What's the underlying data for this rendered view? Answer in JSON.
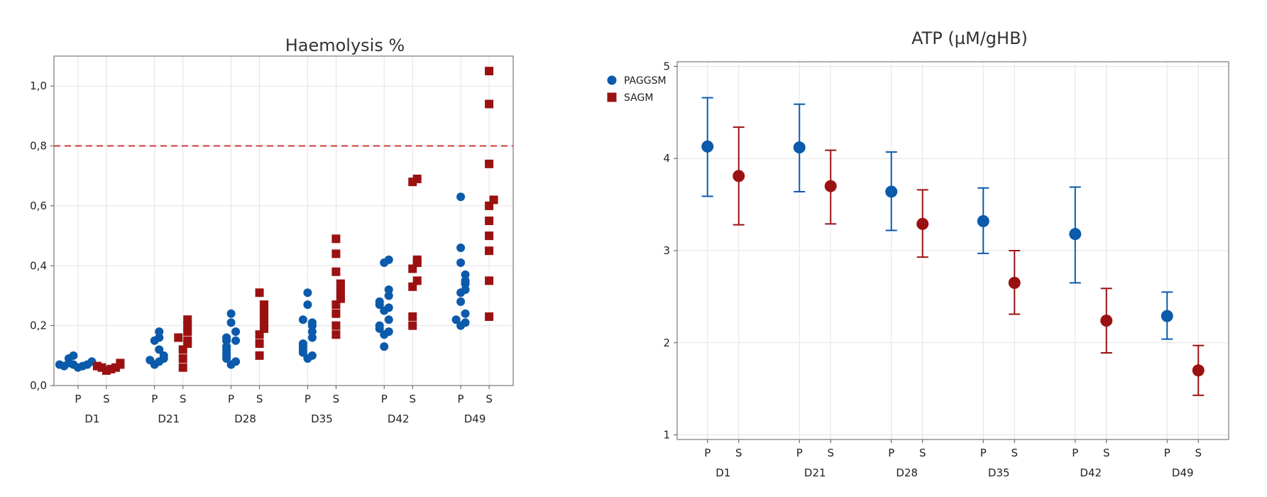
{
  "colors": {
    "PAGGSM": "#0b5aab",
    "SAGM": "#9b1111",
    "threshold": "#d03a32",
    "grid": "#e3e3e3",
    "frame": "#7a7a7a"
  },
  "legend": {
    "items": [
      {
        "label": "PAGGSM",
        "shape": "circle"
      },
      {
        "label": "SAGM",
        "shape": "square"
      }
    ]
  },
  "chart_data": [
    {
      "type": "scatter",
      "title": "Haemolysis %",
      "groups": [
        "D1",
        "D21",
        "D28",
        "D35",
        "D42",
        "D49"
      ],
      "subgroups": [
        "P",
        "S"
      ],
      "ylim": [
        0,
        1.1
      ],
      "yticks": [
        "0,0",
        "0,2",
        "0,4",
        "0,6",
        "0,8",
        "1,0"
      ],
      "reference_line": {
        "y": 0.8,
        "style": "dashed"
      },
      "grid": true,
      "legend_position": "right",
      "series": [
        {
          "name": "PAGGSM",
          "subgroup": "P",
          "marker": "circle",
          "values": {
            "D1": [
              0.06,
              0.065,
              0.07,
              0.07,
              0.075,
              0.08,
              0.09,
              0.1,
              0.065,
              0.07
            ],
            "D21": [
              0.07,
              0.08,
              0.085,
              0.09,
              0.1,
              0.12,
              0.15,
              0.16,
              0.18
            ],
            "D28": [
              0.07,
              0.08,
              0.09,
              0.1,
              0.11,
              0.12,
              0.13,
              0.15,
              0.15,
              0.16,
              0.18,
              0.21,
              0.24
            ],
            "D35": [
              0.09,
              0.1,
              0.11,
              0.12,
              0.13,
              0.14,
              0.16,
              0.18,
              0.2,
              0.21,
              0.22,
              0.27,
              0.31
            ],
            "D42": [
              0.13,
              0.17,
              0.18,
              0.19,
              0.2,
              0.22,
              0.25,
              0.26,
              0.27,
              0.28,
              0.3,
              0.32,
              0.41,
              0.42
            ],
            "D49": [
              0.2,
              0.21,
              0.22,
              0.24,
              0.28,
              0.31,
              0.32,
              0.34,
              0.35,
              0.37,
              0.41,
              0.46,
              0.63
            ]
          }
        },
        {
          "name": "SAGM",
          "subgroup": "S",
          "marker": "square",
          "values": {
            "D1": [
              0.05,
              0.055,
              0.06,
              0.06,
              0.065,
              0.07,
              0.075
            ],
            "D21": [
              0.06,
              0.09,
              0.12,
              0.14,
              0.15,
              0.16,
              0.18,
              0.2,
              0.22
            ],
            "D28": [
              0.1,
              0.14,
              0.17,
              0.19,
              0.21,
              0.23,
              0.25,
              0.27,
              0.31
            ],
            "D35": [
              0.17,
              0.2,
              0.24,
              0.27,
              0.29,
              0.3,
              0.32,
              0.34,
              0.38,
              0.44,
              0.49
            ],
            "D42": [
              0.2,
              0.23,
              0.33,
              0.35,
              0.39,
              0.41,
              0.42,
              0.68,
              0.69
            ],
            "D49": [
              0.23,
              0.35,
              0.45,
              0.5,
              0.55,
              0.6,
              0.62,
              0.74,
              0.94,
              1.05
            ]
          }
        }
      ]
    },
    {
      "type": "scatter",
      "subtype": "errorbar",
      "title": "ATP (µM/gHB)",
      "groups": [
        "D1",
        "D21",
        "D28",
        "D35",
        "D42",
        "D49"
      ],
      "subgroups": [
        "P",
        "S"
      ],
      "ylim": [
        0.95,
        5.05
      ],
      "yticks": [
        "1",
        "2",
        "3",
        "4",
        "5"
      ],
      "grid": true,
      "series": [
        {
          "name": "PAGGSM",
          "subgroup": "P",
          "mean": [
            4.13,
            4.12,
            3.64,
            3.32,
            3.18,
            2.29
          ],
          "lower": [
            3.59,
            3.64,
            3.22,
            2.97,
            2.65,
            2.04
          ],
          "upper": [
            4.66,
            4.59,
            4.07,
            3.68,
            3.69,
            2.55
          ]
        },
        {
          "name": "SAGM",
          "subgroup": "S",
          "mean": [
            3.81,
            3.7,
            3.29,
            2.65,
            2.24,
            1.7
          ],
          "lower": [
            3.28,
            3.29,
            2.93,
            2.31,
            1.89,
            1.43
          ],
          "upper": [
            4.34,
            4.09,
            3.66,
            3.0,
            2.59,
            1.97
          ]
        }
      ]
    }
  ]
}
